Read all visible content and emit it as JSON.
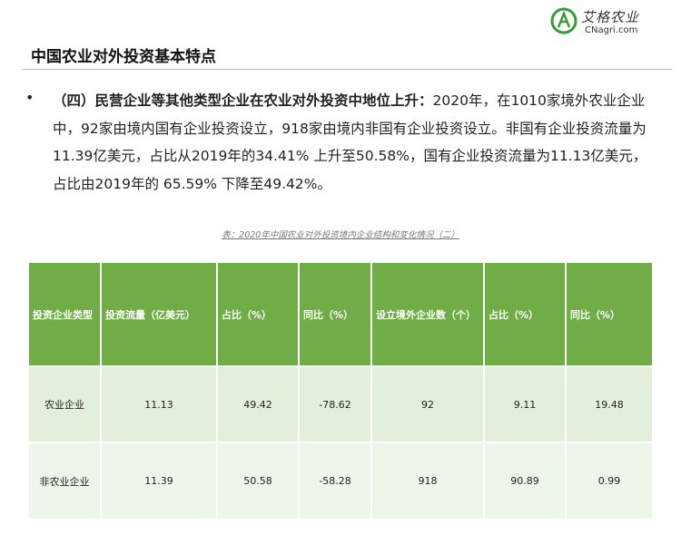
{
  "logo": {
    "name": "艾格农业",
    "url": "CNagri.com"
  },
  "header": {
    "title": "中国农业对外投资基本特点"
  },
  "paragraph": {
    "lead": "（四）民营企业等其他类型企业在农业对外投资中地位上升：",
    "text": "2020年，在1010家境外农业企业中，92家由境内国有企业投资设立，918家由境内非国有企业投资设立。非国有企业投资流量为11.39亿美元，占比从2019年的34.41% 上升至50.58%，国有企业投资流量为11.13亿美元，占比由2019年的 65.59% 下降至49.42%。"
  },
  "table": {
    "caption": "表：2020年中国农业对外投资境内企业结构和变化情况（二）",
    "headers": [
      "投资企业类型",
      "投资流量（亿美元）",
      "占比（%）",
      "同比（%）",
      "设立境外企业数（个）",
      "占比（%）",
      "同比（%）"
    ],
    "rows": [
      [
        "农业企业",
        "11.13",
        "49.42",
        "-78.62",
        "92",
        "9.11",
        "19.48"
      ],
      [
        "非农业企业",
        "11.39",
        "50.58",
        "-58.28",
        "918",
        "90.89",
        "0.99"
      ]
    ]
  }
}
